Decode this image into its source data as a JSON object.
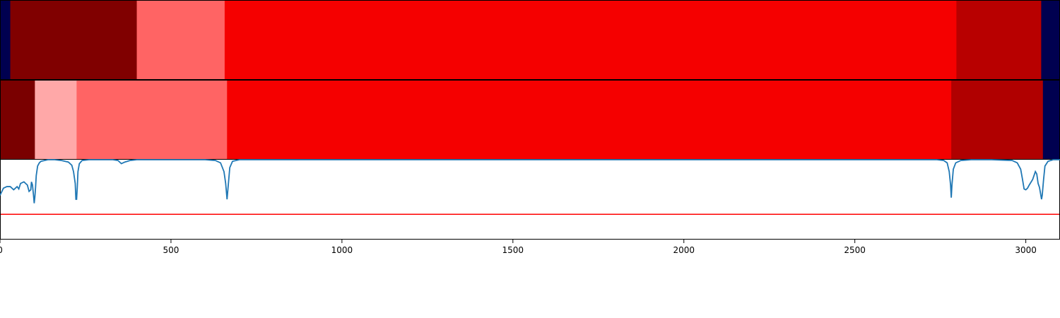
{
  "chart_data": [
    {
      "type": "heatmap",
      "title": "",
      "xlim": [
        0,
        3100
      ],
      "segments": [
        {
          "start": 0,
          "end": 30,
          "color": "#000050"
        },
        {
          "start": 30,
          "end": 400,
          "color": "#800000"
        },
        {
          "start": 400,
          "end": 657,
          "color": "#ff6464"
        },
        {
          "start": 657,
          "end": 2797,
          "color": "#f50000"
        },
        {
          "start": 2797,
          "end": 3045,
          "color": "#b80000"
        },
        {
          "start": 3045,
          "end": 3100,
          "color": "#000050"
        }
      ]
    },
    {
      "type": "heatmap",
      "title": "",
      "xlim": [
        0,
        3100
      ],
      "segments": [
        {
          "start": 0,
          "end": 102,
          "color": "#7a0000"
        },
        {
          "start": 102,
          "end": 224,
          "color": "#ffa8a8"
        },
        {
          "start": 224,
          "end": 664,
          "color": "#ff6464"
        },
        {
          "start": 664,
          "end": 2782,
          "color": "#f50000"
        },
        {
          "start": 2782,
          "end": 3050,
          "color": "#b00000"
        },
        {
          "start": 3050,
          "end": 3100,
          "color": "#000050"
        }
      ]
    },
    {
      "type": "line",
      "title": "",
      "xlabel": "",
      "ylabel": "",
      "xlim": [
        0,
        3100
      ],
      "ylim": [
        0,
        1
      ],
      "x_ticks": [
        0,
        500,
        1000,
        1500,
        2000,
        2500,
        3000
      ],
      "x_tick_labels": [
        "0",
        "500",
        "1000",
        "1500",
        "2000",
        "2500",
        "3000"
      ],
      "threshold": {
        "y": 0.31,
        "color": "#ff0000"
      },
      "series": [
        {
          "color": "#1f77b4",
          "x": [
            0,
            10,
            20,
            30,
            40,
            50,
            55,
            60,
            70,
            75,
            80,
            85,
            90,
            92,
            95,
            98,
            100,
            102,
            104,
            106,
            110,
            115,
            120,
            130,
            140,
            160,
            180,
            200,
            210,
            215,
            220,
            222,
            224,
            226,
            228,
            232,
            240,
            260,
            300,
            330,
            345,
            355,
            365,
            380,
            400,
            450,
            500,
            550,
            600,
            630,
            645,
            655,
            660,
            664,
            668,
            672,
            680,
            700,
            1000,
            1500,
            2000,
            2500,
            2740,
            2760,
            2770,
            2776,
            2780,
            2782,
            2784,
            2788,
            2795,
            2810,
            2840,
            2900,
            2960,
            2975,
            2985,
            2990,
            2995,
            3000,
            3005,
            3010,
            3020,
            3028,
            3032,
            3036,
            3040,
            3044,
            3046,
            3048,
            3052,
            3056,
            3065,
            3080,
            3100
          ],
          "y": [
            0.55,
            0.64,
            0.66,
            0.66,
            0.62,
            0.66,
            0.63,
            0.7,
            0.72,
            0.7,
            0.68,
            0.6,
            0.62,
            0.72,
            0.68,
            0.55,
            0.45,
            0.53,
            0.65,
            0.8,
            0.92,
            0.96,
            0.98,
            0.99,
            1.0,
            1.0,
            0.99,
            0.97,
            0.93,
            0.85,
            0.7,
            0.5,
            0.5,
            0.65,
            0.85,
            0.95,
            0.99,
            1.0,
            1.0,
            1.0,
            0.99,
            0.95,
            0.97,
            0.99,
            1.0,
            1.0,
            1.0,
            1.0,
            1.0,
            0.99,
            0.96,
            0.85,
            0.7,
            0.5,
            0.7,
            0.9,
            0.98,
            1.0,
            1.0,
            1.0,
            1.0,
            1.0,
            1.0,
            0.99,
            0.96,
            0.85,
            0.68,
            0.52,
            0.68,
            0.88,
            0.96,
            0.99,
            1.0,
            1.0,
            0.99,
            0.96,
            0.88,
            0.76,
            0.63,
            0.62,
            0.64,
            0.68,
            0.75,
            0.85,
            0.82,
            0.7,
            0.65,
            0.55,
            0.5,
            0.55,
            0.75,
            0.92,
            0.98,
            1.0,
            1.0
          ]
        }
      ]
    }
  ]
}
